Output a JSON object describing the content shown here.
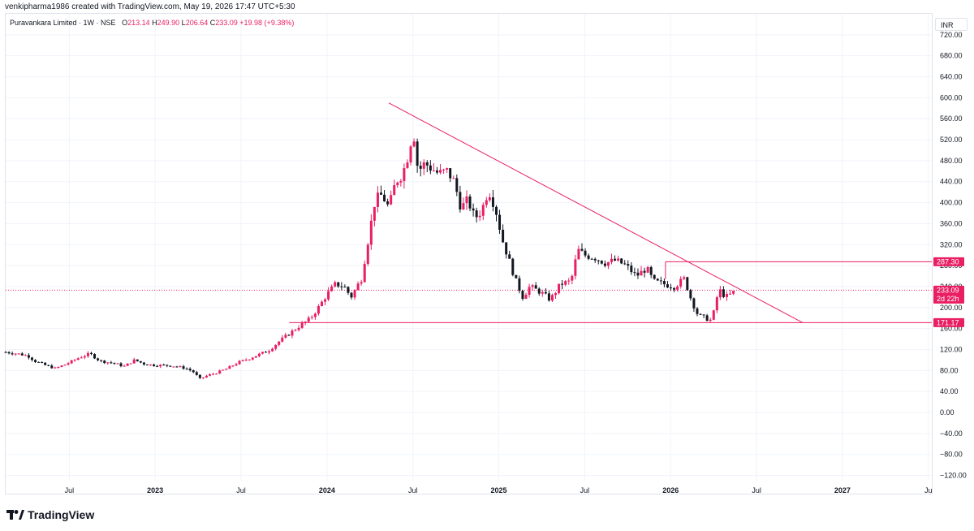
{
  "header": {
    "credit": "venkipharma1986 created with TradingView.com, May 19, 2026 17:47 UTC+5:30"
  },
  "legend": {
    "symbol": "Puravankara Limited · 1W · NSE",
    "open_label": "O",
    "open": "213.14",
    "high_label": "H",
    "high": "249.90",
    "low_label": "L",
    "low": "206.64",
    "close_label": "C",
    "close": "233.09",
    "change": "+19.98 (+9.38%)"
  },
  "currency": "INR",
  "brand": "TradingView",
  "colors": {
    "up": "#e91e63",
    "down": "#131722",
    "drawing": "#e91e63",
    "grid": "#f0f3fa"
  },
  "chart_data": {
    "type": "candlestick",
    "interval": "1W",
    "currency": "INR",
    "ylim": [
      -130,
      760
    ],
    "y_ticks": [
      720,
      680,
      640,
      600,
      560,
      520,
      480,
      440,
      400,
      360,
      320,
      280,
      240,
      200,
      160,
      120,
      80,
      40,
      0,
      -40,
      -80,
      -120
    ],
    "y_tick_labels": [
      "720.00",
      "680.00",
      "640.00",
      "600.00",
      "560.00",
      "520.00",
      "480.00",
      "440.00",
      "400.00",
      "360.00",
      "320.00",
      "280.00",
      "240.00",
      "200.00",
      "160.00",
      "120.00",
      "80.00",
      "40.00",
      "0.00",
      "−40.00",
      "−80.00",
      "−120.00"
    ],
    "x_ticks": [
      {
        "label": "Jul",
        "t": 2022.5
      },
      {
        "label": "2023",
        "t": 2023.0
      },
      {
        "label": "Jul",
        "t": 2023.5
      },
      {
        "label": "2024",
        "t": 2024.0
      },
      {
        "label": "Jul",
        "t": 2024.5
      },
      {
        "label": "2025",
        "t": 2025.0
      },
      {
        "label": "Jul",
        "t": 2025.5
      },
      {
        "label": "2026",
        "t": 2026.0
      },
      {
        "label": "Jul",
        "t": 2026.5
      },
      {
        "label": "2027",
        "t": 2027.0
      },
      {
        "label": "Ju",
        "t": 2027.5
      }
    ],
    "x_range": [
      2022.13,
      2027.52
    ],
    "price_path": [
      [
        2022.13,
        115
      ],
      [
        2022.2,
        112
      ],
      [
        2022.26,
        108
      ],
      [
        2022.3,
        98
      ],
      [
        2022.36,
        90
      ],
      [
        2022.42,
        84
      ],
      [
        2022.5,
        95
      ],
      [
        2022.56,
        105
      ],
      [
        2022.62,
        112
      ],
      [
        2022.68,
        98
      ],
      [
        2022.76,
        94
      ],
      [
        2022.82,
        88
      ],
      [
        2022.88,
        100
      ],
      [
        2022.94,
        92
      ],
      [
        2023.0,
        90
      ],
      [
        2023.06,
        90
      ],
      [
        2023.12,
        88
      ],
      [
        2023.18,
        84
      ],
      [
        2023.22,
        78
      ],
      [
        2023.26,
        64
      ],
      [
        2023.3,
        70
      ],
      [
        2023.36,
        76
      ],
      [
        2023.42,
        84
      ],
      [
        2023.48,
        95
      ],
      [
        2023.54,
        102
      ],
      [
        2023.6,
        110
      ],
      [
        2023.66,
        118
      ],
      [
        2023.72,
        135
      ],
      [
        2023.78,
        150
      ],
      [
        2023.84,
        165
      ],
      [
        2023.9,
        178
      ],
      [
        2023.95,
        200
      ],
      [
        2024.0,
        225
      ],
      [
        2024.05,
        245
      ],
      [
        2024.1,
        240
      ],
      [
        2024.14,
        220
      ],
      [
        2024.2,
        255
      ],
      [
        2024.24,
        330
      ],
      [
        2024.28,
        405
      ],
      [
        2024.32,
        415
      ],
      [
        2024.36,
        390
      ],
      [
        2024.4,
        440
      ],
      [
        2024.44,
        455
      ],
      [
        2024.48,
        500
      ],
      [
        2024.5,
        545
      ],
      [
        2024.53,
        460
      ],
      [
        2024.57,
        475
      ],
      [
        2024.61,
        465
      ],
      [
        2024.65,
        455
      ],
      [
        2024.7,
        460
      ],
      [
        2024.74,
        440
      ],
      [
        2024.78,
        390
      ],
      [
        2024.82,
        405
      ],
      [
        2024.86,
        370
      ],
      [
        2024.9,
        385
      ],
      [
        2024.94,
        425
      ],
      [
        2024.98,
        390
      ],
      [
        2025.02,
        330
      ],
      [
        2025.06,
        290
      ],
      [
        2025.1,
        250
      ],
      [
        2025.14,
        220
      ],
      [
        2025.18,
        240
      ],
      [
        2025.24,
        230
      ],
      [
        2025.3,
        215
      ],
      [
        2025.36,
        245
      ],
      [
        2025.42,
        250
      ],
      [
        2025.46,
        310
      ],
      [
        2025.5,
        300
      ],
      [
        2025.56,
        295
      ],
      [
        2025.62,
        285
      ],
      [
        2025.68,
        290
      ],
      [
        2025.74,
        280
      ],
      [
        2025.8,
        260
      ],
      [
        2025.86,
        275
      ],
      [
        2025.9,
        250
      ],
      [
        2025.96,
        245
      ],
      [
        2026.02,
        240
      ],
      [
        2026.08,
        255
      ],
      [
        2026.12,
        215
      ],
      [
        2026.16,
        185
      ],
      [
        2026.2,
        180
      ],
      [
        2026.24,
        175
      ],
      [
        2026.28,
        235
      ],
      [
        2026.32,
        220
      ],
      [
        2026.35,
        225
      ],
      [
        2026.38,
        233.09
      ]
    ],
    "drawings": [
      {
        "name": "descending-trendline",
        "from": [
          2024.36,
          590
        ],
        "to": [
          2026.77,
          171
        ]
      },
      {
        "name": "support-line",
        "from": [
          2023.78,
          171.17
        ],
        "to": [
          2027.52,
          171.17
        ]
      },
      {
        "name": "resistance-line",
        "from": [
          2025.97,
          287.3
        ],
        "to": [
          2027.52,
          287.3
        ]
      },
      {
        "name": "resistance-left-tick",
        "from": [
          2025.97,
          254
        ],
        "to": [
          2025.97,
          287.3
        ]
      }
    ],
    "price_labels": [
      {
        "value": 287.3,
        "text": "287.30"
      },
      {
        "value": 233.09,
        "text": "233.09",
        "sub": "2d 22h"
      },
      {
        "value": 171.17,
        "text": "171.17"
      }
    ]
  }
}
